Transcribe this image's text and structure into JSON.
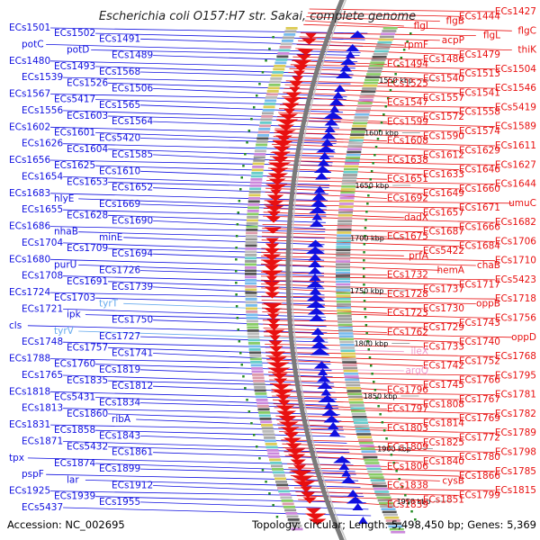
{
  "title": "Escherichia coli O157:H7 str. Sakai, complete genome",
  "accession_text": "Accession: NC_002695",
  "topology_text": "Topology: circular; Length: 5,498,450 bp; Genes: 5,369",
  "colors": {
    "forward": "#e81010",
    "reverse": "#1010e0",
    "rna": "#66aaee",
    "pseudo": "#ee99cc",
    "backbone": "#7a7a7a",
    "gc_tick": "#228b22"
  },
  "scale_labels": [
    "1550 kbp",
    "1600 kbp",
    "1650 kbp",
    "1700 kbp",
    "1750 kbp",
    "1800 kbp",
    "1850 kbp",
    "1900 kbp",
    "1950 kbp"
  ],
  "left_labels": [
    "ECs1501",
    "ECs1502",
    "ECs1491",
    "potC",
    "potD",
    "ECs1489",
    "ECs1480",
    "ECs1493",
    "ECs1568",
    "ECs1539",
    "ECs1526",
    "ECs1506",
    "ECs1567",
    "ECs5417",
    "ECs1565",
    "ECs1556",
    "ECs1603",
    "ECs1564",
    "ECs1602",
    "ECs1601",
    "ECs5420",
    "ECs1626",
    "ECs1604",
    "ECs1585",
    "ECs1656",
    "ECs1625",
    "ECs1610",
    "ECs1654",
    "ECs1653",
    "ECs1652",
    "ECs1683",
    "hlyE",
    "ECs1669",
    "ECs1655",
    "ECs1628",
    "ECs1690",
    "ECs1686",
    "nhaB",
    "minE",
    "ECs1704",
    "ECs1709",
    "ECs1694",
    "ECs1680",
    "purU",
    "ECs1726",
    "ECs1708",
    "ECs1691",
    "ECs1739",
    "ECs1724",
    "ECs1703",
    "tyrT",
    "ECs1721",
    "ipk",
    "ECs1750",
    "cls",
    "tyrV",
    "ECs1727",
    "ECs1748",
    "ECs1757",
    "ECs1741",
    "ECs1788",
    "ECs1760",
    "ECs1819",
    "ECs1765",
    "ECs1835",
    "ECs1812",
    "ECs1818",
    "ECs5431",
    "ECs1834",
    "ECs1813",
    "ECs1860",
    "ribA",
    "ECs1831",
    "ECs1858",
    "ECs1843",
    "ECs1871",
    "ECs5432",
    "ECs1861",
    "tpx",
    "ECs1874",
    "ECs1899",
    "pspF",
    "lar",
    "ECs1912",
    "ECs1925",
    "ECs1939",
    "ECs1955",
    "ECs5437"
  ],
  "right_labels": [
    "ECs1427",
    "ECs1444",
    "flgB",
    "flgI",
    "flgC",
    "flgL",
    "acpP",
    "rpmF",
    "thiK",
    "ECs1479",
    "ECs1486",
    "ECs1494",
    "ECs1504",
    "ECs1513",
    "ECs1540",
    "ECs1525",
    "ECs1546",
    "ECs1541",
    "ECs1557",
    "ECs1547",
    "ECs5419",
    "ECs1558",
    "ECs1572",
    "ECs1599",
    "ECs1589",
    "ECs1574",
    "ECs1590",
    "ECs1608",
    "ECs1611",
    "ECs1629",
    "ECs1612",
    "ECs1638",
    "ECs1627",
    "ECs1646",
    "ECs1633",
    "ECs1651",
    "ECs1644",
    "ECs1660",
    "ECs1649",
    "ECs1692",
    "umuC",
    "ECs1671",
    "ECs1657",
    "dadX",
    "ECs1682",
    "ECs1666",
    "ECs1687",
    "ECs1675",
    "ECs1706",
    "ECs1684",
    "ECs5422",
    "prfA",
    "ECs1710",
    "chaB",
    "hemA",
    "ECs1732",
    "ECs5423",
    "ECs1717",
    "ECs1737",
    "ECs1728",
    "ECs1718",
    "oppB",
    "ECs1730",
    "ECs1723",
    "ECs1756",
    "ECs1743",
    "ECs1729",
    "ECs1762",
    "oppD",
    "ECs1740",
    "ECs1733",
    "ileX",
    "ECs1768",
    "ECs1752",
    "ECs1742",
    "argQ",
    "ECs1795",
    "ECs1766",
    "ECs1745",
    "ECs1796",
    "ECs1781",
    "ECs1767",
    "ECs1808",
    "ECs1797",
    "ECs1782",
    "ECs1769",
    "ECs1814",
    "ECs1803",
    "ECs1789",
    "ECs1772",
    "ECs1825",
    "ECs1809",
    "ECs1798",
    "ECs1780",
    "ECs1840",
    "ECs1806",
    "ECs1785",
    "ECs1866",
    "cysB",
    "ECs1838",
    "ECs1815",
    "ECs1799",
    "ECs1851",
    "ECs1839"
  ]
}
